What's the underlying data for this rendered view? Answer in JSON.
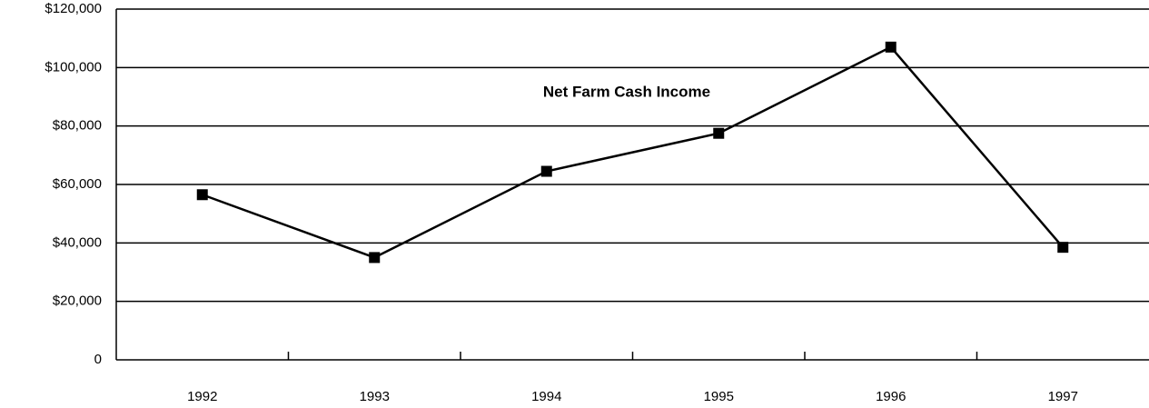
{
  "chart_data": {
    "type": "line",
    "title": "Net Farm Cash Income",
    "categories": [
      "1992",
      "1993",
      "1994",
      "1995",
      "1996",
      "1997"
    ],
    "values": [
      56500,
      35000,
      64500,
      77500,
      107000,
      38500
    ],
    "color": "#000000",
    "ylim": [
      0,
      120000
    ],
    "yticks": [
      0,
      {
        "value": 20000,
        "label": "$20,000"
      },
      {
        "value": 40000,
        "label": "$40,000"
      },
      {
        "value": 60000,
        "label": "$60,000"
      },
      {
        "value": 80000,
        "label": "$80,000"
      },
      {
        "value": 100000,
        "label": "$100,000"
      },
      {
        "value": 120000,
        "label": "$120,000"
      }
    ],
    "grid": true
  }
}
